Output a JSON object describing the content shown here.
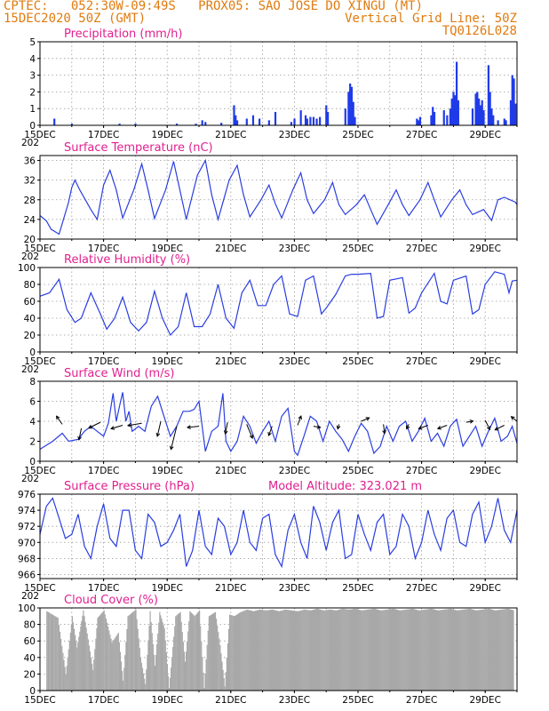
{
  "header": {
    "left_line1": "CPTEC:   052:30W-09:49S   PROX05: SAO JOSE DO XINGU (MT)",
    "left_line2": "15DEC2020 50Z (GMT)",
    "right_line2": "Vertical Grid Line: 50Z",
    "right_line3": "TQ0126L028"
  },
  "colors": {
    "header": "#e07b10",
    "title": "#e0208f",
    "line": "#2a3ee0",
    "bar": "#1f3be8",
    "cloud": "#a8a8a8",
    "arrow": "#000000"
  },
  "x_axis": {
    "day_range": [
      15,
      30
    ],
    "tick_labels": [
      "15DEC",
      "17DEC",
      "19DEC",
      "21DEC",
      "23DEC",
      "25DEC",
      "27DEC",
      "29DEC"
    ],
    "tick_days": [
      15,
      17,
      19,
      21,
      23,
      25,
      27,
      29
    ],
    "clipped_year_label": "202"
  },
  "chart_data": [
    {
      "type": "bar",
      "title": "Precipitation (mm/h)",
      "ylim": [
        0,
        5
      ],
      "yticks": [
        0,
        1,
        2,
        3,
        4,
        5
      ],
      "grid": true,
      "points": [
        [
          15.45,
          0.4
        ],
        [
          16.0,
          0.1
        ],
        [
          17.5,
          0.1
        ],
        [
          18.0,
          0.1
        ],
        [
          19.3,
          0.1
        ],
        [
          19.9,
          0.1
        ],
        [
          20.1,
          0.3
        ],
        [
          20.2,
          0.2
        ],
        [
          20.7,
          0.15
        ],
        [
          21.1,
          1.2
        ],
        [
          21.15,
          0.6
        ],
        [
          21.2,
          0.3
        ],
        [
          21.5,
          0.4
        ],
        [
          21.7,
          0.6
        ],
        [
          21.9,
          0.4
        ],
        [
          22.2,
          0.3
        ],
        [
          22.4,
          0.8
        ],
        [
          22.9,
          0.2
        ],
        [
          23.0,
          0.4
        ],
        [
          23.2,
          0.9
        ],
        [
          23.35,
          0.6
        ],
        [
          23.4,
          0.4
        ],
        [
          23.5,
          0.5
        ],
        [
          23.6,
          0.5
        ],
        [
          23.7,
          0.4
        ],
        [
          23.8,
          0.5
        ],
        [
          24.0,
          1.2
        ],
        [
          24.05,
          0.8
        ],
        [
          24.6,
          1.0
        ],
        [
          24.7,
          2.0
        ],
        [
          24.75,
          2.5
        ],
        [
          24.8,
          2.3
        ],
        [
          24.85,
          1.4
        ],
        [
          24.9,
          0.5
        ],
        [
          26.85,
          0.4
        ],
        [
          26.9,
          0.3
        ],
        [
          26.95,
          0.5
        ],
        [
          27.3,
          0.6
        ],
        [
          27.35,
          1.1
        ],
        [
          27.4,
          0.8
        ],
        [
          27.7,
          0.9
        ],
        [
          27.8,
          0.6
        ],
        [
          27.9,
          1.0
        ],
        [
          27.95,
          1.6
        ],
        [
          28.0,
          2.0
        ],
        [
          28.05,
          1.8
        ],
        [
          28.1,
          3.8
        ],
        [
          28.15,
          1.5
        ],
        [
          28.6,
          1.0
        ],
        [
          28.7,
          1.9
        ],
        [
          28.75,
          2.0
        ],
        [
          28.8,
          1.6
        ],
        [
          28.85,
          1.2
        ],
        [
          28.9,
          1.5
        ],
        [
          28.95,
          0.9
        ],
        [
          29.1,
          3.6
        ],
        [
          29.15,
          2.0
        ],
        [
          29.2,
          1.0
        ],
        [
          29.25,
          0.6
        ],
        [
          29.4,
          0.3
        ],
        [
          29.6,
          0.4
        ],
        [
          29.65,
          0.3
        ],
        [
          29.8,
          1.5
        ],
        [
          29.85,
          3.0
        ],
        [
          29.9,
          2.8
        ],
        [
          29.95,
          1.3
        ]
      ]
    },
    {
      "type": "line",
      "title": "Surface Temperature (nC)",
      "ylim": [
        20,
        37
      ],
      "yticks": [
        20,
        24,
        28,
        32,
        36
      ],
      "grid": true,
      "x": [
        15.0,
        15.2,
        15.35,
        15.6,
        15.9,
        16.0,
        16.1,
        16.25,
        16.6,
        16.8,
        17.0,
        17.2,
        17.4,
        17.6,
        17.95,
        18.2,
        18.4,
        18.6,
        18.95,
        19.2,
        19.4,
        19.6,
        19.95,
        20.2,
        20.4,
        20.6,
        20.95,
        21.2,
        21.4,
        21.6,
        21.95,
        22.2,
        22.4,
        22.6,
        22.95,
        23.2,
        23.4,
        23.6,
        23.95,
        24.2,
        24.4,
        24.6,
        24.95,
        25.2,
        25.4,
        25.6,
        25.95,
        26.2,
        26.4,
        26.6,
        26.95,
        27.2,
        27.4,
        27.6,
        27.95,
        28.2,
        28.4,
        28.6,
        28.95,
        29.2,
        29.4,
        29.6,
        29.95,
        30.0
      ],
      "y": [
        24.8,
        23.7,
        22.0,
        21.0,
        27.5,
        30.5,
        32.0,
        30.0,
        26.0,
        24.0,
        31.0,
        34.0,
        30.0,
        24.3,
        30.0,
        35.3,
        30.0,
        24.2,
        30.0,
        35.8,
        30.0,
        24.0,
        33.0,
        36.0,
        29.0,
        24.0,
        32.0,
        35.0,
        29.0,
        24.5,
        28.0,
        31.0,
        27.2,
        24.3,
        30.0,
        33.5,
        28.0,
        25.2,
        28.0,
        31.5,
        27.0,
        25.0,
        27.0,
        29.0,
        26.0,
        23.0,
        27.0,
        30.0,
        27.0,
        24.8,
        28.0,
        31.5,
        28.0,
        24.5,
        28.0,
        30.0,
        27.0,
        25.0,
        26.0,
        23.8,
        28.0,
        28.5,
        27.5,
        27.0
      ]
    },
    {
      "type": "line",
      "title": "Relative Humidity (%)",
      "ylim": [
        0,
        100
      ],
      "yticks": [
        0,
        20,
        40,
        60,
        80,
        100
      ],
      "grid": true,
      "x": [
        15.0,
        15.3,
        15.6,
        15.85,
        16.1,
        16.3,
        16.6,
        16.9,
        17.1,
        17.35,
        17.6,
        17.85,
        18.1,
        18.35,
        18.6,
        18.85,
        19.1,
        19.35,
        19.6,
        19.85,
        20.1,
        20.35,
        20.6,
        20.85,
        21.1,
        21.35,
        21.6,
        21.85,
        22.1,
        22.35,
        22.6,
        22.85,
        23.1,
        23.35,
        23.6,
        23.85,
        24.0,
        24.3,
        24.6,
        24.8,
        25.0,
        25.4,
        25.6,
        25.8,
        26.0,
        26.4,
        26.6,
        26.8,
        27.0,
        27.4,
        27.6,
        27.8,
        28.0,
        28.4,
        28.6,
        28.8,
        29.0,
        29.3,
        29.6,
        29.75,
        29.85,
        30.0
      ],
      "y": [
        66,
        70,
        86,
        50,
        35,
        40,
        70,
        45,
        27,
        40,
        65,
        35,
        25,
        35,
        72,
        40,
        20,
        30,
        70,
        30,
        30,
        45,
        80,
        40,
        28,
        70,
        85,
        55,
        55,
        80,
        90,
        45,
        42,
        85,
        90,
        45,
        52,
        68,
        90,
        92,
        92,
        93,
        40,
        42,
        85,
        88,
        46,
        52,
        70,
        93,
        60,
        57,
        85,
        90,
        45,
        50,
        80,
        95,
        92,
        70,
        84,
        85
      ]
    },
    {
      "type": "line",
      "title": "Surface Wind (m/s)",
      "ylim": [
        0,
        8
      ],
      "yticks": [
        0,
        2,
        4,
        6,
        8
      ],
      "grid": true,
      "x": [
        15.0,
        15.4,
        15.7,
        15.9,
        16.2,
        16.4,
        16.6,
        16.8,
        17.0,
        17.15,
        17.3,
        17.4,
        17.5,
        17.6,
        17.7,
        17.8,
        17.9,
        18.1,
        18.3,
        18.5,
        18.7,
        18.9,
        19.1,
        19.3,
        19.5,
        19.7,
        19.85,
        20.0,
        20.2,
        20.4,
        20.6,
        20.75,
        20.85,
        21.0,
        21.2,
        21.4,
        21.6,
        21.8,
        22.0,
        22.2,
        22.4,
        22.6,
        22.8,
        23.0,
        23.1,
        23.3,
        23.5,
        23.7,
        23.9,
        24.1,
        24.3,
        24.5,
        24.7,
        24.9,
        25.1,
        25.3,
        25.5,
        25.7,
        25.9,
        26.1,
        26.3,
        26.5,
        26.7,
        26.9,
        27.1,
        27.3,
        27.5,
        27.7,
        27.9,
        28.1,
        28.3,
        28.5,
        28.7,
        28.9,
        29.1,
        29.3,
        29.5,
        29.7,
        29.85,
        30.0
      ],
      "y": [
        1.2,
        2.0,
        2.8,
        2.0,
        2.2,
        3.0,
        3.5,
        3.0,
        2.5,
        3.8,
        6.8,
        4.0,
        5.5,
        6.9,
        4.0,
        5.0,
        3.0,
        3.5,
        3.0,
        5.5,
        6.5,
        4.5,
        2.5,
        3.5,
        5.0,
        5.0,
        5.2,
        6.0,
        1.0,
        3.0,
        3.5,
        6.8,
        2.0,
        1.0,
        2.0,
        4.5,
        3.5,
        1.8,
        3.0,
        4.0,
        2.0,
        4.5,
        5.3,
        1.0,
        0.6,
        2.5,
        4.5,
        4.0,
        2.0,
        4.0,
        3.0,
        2.2,
        1.0,
        2.5,
        3.8,
        3.0,
        0.8,
        1.5,
        3.5,
        2.0,
        3.5,
        4.0,
        2.0,
        3.0,
        4.3,
        2.0,
        2.8,
        1.5,
        3.5,
        4.2,
        1.5,
        2.5,
        3.5,
        1.5,
        3.0,
        4.3,
        2.0,
        2.5,
        3.5,
        1.8
      ],
      "arrows": [
        {
          "x": 15.7,
          "y": 3.7,
          "u": -0.5,
          "v": 0.7
        },
        {
          "x": 16.3,
          "y": 3.3,
          "u": -0.2,
          "v": -1.0
        },
        {
          "x": 16.9,
          "y": 3.9,
          "u": -1.0,
          "v": -0.5
        },
        {
          "x": 17.6,
          "y": 3.6,
          "u": -1.0,
          "v": -0.3
        },
        {
          "x": 18.2,
          "y": 3.8,
          "u": -1.2,
          "v": -0.2
        },
        {
          "x": 18.8,
          "y": 4.0,
          "u": -0.3,
          "v": -1.3
        },
        {
          "x": 19.3,
          "y": 3.5,
          "u": -0.5,
          "v": -2.0
        },
        {
          "x": 20.0,
          "y": 3.5,
          "u": -1.0,
          "v": -0.1
        },
        {
          "x": 20.9,
          "y": 3.9,
          "u": -0.2,
          "v": -1.0
        },
        {
          "x": 21.5,
          "y": 3.7,
          "u": 0.5,
          "v": -1.2
        },
        {
          "x": 22.3,
          "y": 3.5,
          "u": -0.3,
          "v": -0.8
        },
        {
          "x": 23.1,
          "y": 3.6,
          "u": 0.3,
          "v": 0.8
        },
        {
          "x": 23.6,
          "y": 3.5,
          "u": 0.6,
          "v": -0.1
        },
        {
          "x": 24.4,
          "y": 3.7,
          "u": -0.1,
          "v": -0.4
        },
        {
          "x": 25.1,
          "y": 4.0,
          "u": 0.7,
          "v": 0.3
        },
        {
          "x": 25.8,
          "y": 3.7,
          "u": 0.1,
          "v": -0.8
        },
        {
          "x": 26.6,
          "y": 3.7,
          "u": -0.2,
          "v": -0.4
        },
        {
          "x": 27.2,
          "y": 3.6,
          "u": -0.8,
          "v": -0.3
        },
        {
          "x": 27.8,
          "y": 3.6,
          "u": -0.8,
          "v": -0.3
        },
        {
          "x": 28.4,
          "y": 3.9,
          "u": 0.6,
          "v": 0.1
        },
        {
          "x": 29.0,
          "y": 4.1,
          "u": 0.4,
          "v": -0.8
        },
        {
          "x": 29.6,
          "y": 3.6,
          "u": -0.8,
          "v": -0.4
        },
        {
          "x": 30.0,
          "y": 4.0,
          "u": -0.5,
          "v": 0.4
        }
      ]
    },
    {
      "type": "line",
      "title": "Surface Pressure (hPa)",
      "annotation": "Model Altitude: 323.021 m",
      "ylim": [
        965.5,
        976
      ],
      "yticks": [
        966,
        968,
        970,
        972,
        974,
        976
      ],
      "grid": true,
      "x": [
        15.0,
        15.2,
        15.4,
        15.6,
        15.8,
        16.0,
        16.2,
        16.4,
        16.6,
        16.8,
        17.0,
        17.2,
        17.4,
        17.6,
        17.8,
        18.0,
        18.2,
        18.4,
        18.6,
        18.8,
        19.0,
        19.2,
        19.4,
        19.6,
        19.8,
        20.0,
        20.2,
        20.4,
        20.6,
        20.8,
        21.0,
        21.2,
        21.4,
        21.6,
        21.8,
        22.0,
        22.2,
        22.4,
        22.6,
        22.8,
        23.0,
        23.2,
        23.4,
        23.6,
        23.8,
        24.0,
        24.2,
        24.4,
        24.6,
        24.8,
        25.0,
        25.2,
        25.4,
        25.6,
        25.8,
        26.0,
        26.2,
        26.4,
        26.6,
        26.8,
        27.0,
        27.2,
        27.4,
        27.6,
        27.8,
        28.0,
        28.2,
        28.4,
        28.6,
        28.8,
        29.0,
        29.2,
        29.4,
        29.6,
        29.8,
        30.0
      ],
      "y": [
        971.0,
        974.5,
        975.5,
        973.0,
        970.5,
        971.0,
        973.5,
        969.5,
        968.0,
        972.0,
        974.8,
        970.5,
        969.5,
        974.0,
        974.0,
        969.0,
        968.0,
        973.5,
        972.5,
        969.5,
        970.0,
        971.5,
        973.5,
        967.0,
        969.0,
        974.0,
        969.5,
        968.5,
        973.0,
        972.0,
        968.5,
        970.0,
        974.0,
        970.0,
        969.0,
        973.0,
        973.5,
        968.5,
        967.0,
        971.5,
        973.5,
        970.0,
        968.0,
        974.5,
        972.5,
        969.0,
        972.5,
        974.0,
        968.0,
        968.5,
        973.5,
        971.0,
        969.0,
        972.5,
        973.5,
        968.5,
        969.5,
        973.5,
        972.0,
        968.0,
        970.0,
        974.0,
        971.0,
        969.0,
        973.0,
        974.0,
        970.0,
        969.5,
        973.5,
        975.0,
        970.0,
        972.0,
        975.5,
        971.5,
        970.0,
        974.0
      ]
    },
    {
      "type": "bar",
      "title": "Cloud Cover (%)",
      "ylim": [
        0,
        100
      ],
      "yticks": [
        0,
        20,
        40,
        60,
        80,
        100
      ],
      "grid": true,
      "points": [
        [
          15.2,
          96
        ],
        [
          15.55,
          88
        ],
        [
          15.8,
          20
        ],
        [
          16.0,
          90
        ],
        [
          16.15,
          52
        ],
        [
          16.35,
          97
        ],
        [
          16.5,
          62
        ],
        [
          16.65,
          25
        ],
        [
          16.8,
          88
        ],
        [
          17.0,
          97
        ],
        [
          17.25,
          58
        ],
        [
          17.45,
          70
        ],
        [
          17.6,
          12
        ],
        [
          17.75,
          90
        ],
        [
          18.0,
          98
        ],
        [
          18.15,
          40
        ],
        [
          18.3,
          8
        ],
        [
          18.45,
          96
        ],
        [
          18.6,
          30
        ],
        [
          18.75,
          95
        ],
        [
          18.9,
          75
        ],
        [
          19.05,
          3
        ],
        [
          19.25,
          90
        ],
        [
          19.4,
          95
        ],
        [
          19.55,
          35
        ],
        [
          19.7,
          96
        ],
        [
          19.85,
          90
        ],
        [
          20.0,
          97
        ],
        [
          20.15,
          3
        ],
        [
          20.3,
          90
        ],
        [
          20.5,
          95
        ],
        [
          20.65,
          55
        ],
        [
          20.8,
          5
        ],
        [
          20.95,
          92
        ],
        [
          21.1,
          90
        ],
        [
          21.3,
          95
        ],
        [
          21.5,
          98
        ],
        [
          21.7,
          96
        ],
        [
          21.9,
          98
        ],
        [
          22.1,
          97
        ],
        [
          22.3,
          98
        ],
        [
          22.5,
          96
        ],
        [
          22.7,
          98
        ],
        [
          22.9,
          97
        ],
        [
          23.1,
          96
        ],
        [
          23.3,
          98
        ],
        [
          23.5,
          97
        ],
        [
          23.7,
          99
        ],
        [
          23.9,
          97
        ],
        [
          24.1,
          98
        ],
        [
          24.3,
          97
        ],
        [
          24.5,
          99
        ],
        [
          24.7,
          98
        ],
        [
          24.9,
          99
        ],
        [
          25.1,
          97
        ],
        [
          25.3,
          98
        ],
        [
          25.5,
          99
        ],
        [
          25.7,
          97
        ],
        [
          25.9,
          98
        ],
        [
          26.1,
          99
        ],
        [
          26.3,
          97
        ],
        [
          26.5,
          98
        ],
        [
          26.7,
          99
        ],
        [
          26.9,
          97
        ],
        [
          27.1,
          98
        ],
        [
          27.3,
          99
        ],
        [
          27.5,
          97
        ],
        [
          27.7,
          98
        ],
        [
          27.9,
          99
        ],
        [
          28.1,
          97
        ],
        [
          28.3,
          98
        ],
        [
          28.5,
          99
        ],
        [
          28.7,
          97
        ],
        [
          28.9,
          98
        ],
        [
          29.1,
          99
        ],
        [
          29.3,
          97
        ],
        [
          29.5,
          98
        ],
        [
          29.7,
          99
        ],
        [
          29.9,
          97
        ]
      ]
    }
  ]
}
